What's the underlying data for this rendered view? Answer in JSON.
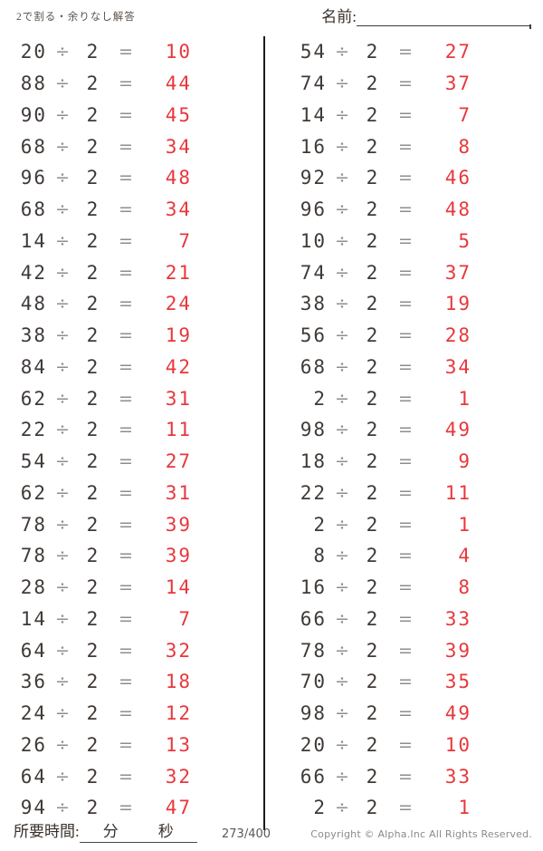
{
  "header": {
    "title": "2で割る・余りなし解答",
    "name_label": "名前:"
  },
  "symbols": {
    "divide": "÷",
    "equals": "="
  },
  "problems": {
    "left": [
      {
        "dividend": "20",
        "divisor": "2",
        "answer": "10"
      },
      {
        "dividend": "88",
        "divisor": "2",
        "answer": "44"
      },
      {
        "dividend": "90",
        "divisor": "2",
        "answer": "45"
      },
      {
        "dividend": "68",
        "divisor": "2",
        "answer": "34"
      },
      {
        "dividend": "96",
        "divisor": "2",
        "answer": "48"
      },
      {
        "dividend": "68",
        "divisor": "2",
        "answer": "34"
      },
      {
        "dividend": "14",
        "divisor": "2",
        "answer": "7"
      },
      {
        "dividend": "42",
        "divisor": "2",
        "answer": "21"
      },
      {
        "dividend": "48",
        "divisor": "2",
        "answer": "24"
      },
      {
        "dividend": "38",
        "divisor": "2",
        "answer": "19"
      },
      {
        "dividend": "84",
        "divisor": "2",
        "answer": "42"
      },
      {
        "dividend": "62",
        "divisor": "2",
        "answer": "31"
      },
      {
        "dividend": "22",
        "divisor": "2",
        "answer": "11"
      },
      {
        "dividend": "54",
        "divisor": "2",
        "answer": "27"
      },
      {
        "dividend": "62",
        "divisor": "2",
        "answer": "31"
      },
      {
        "dividend": "78",
        "divisor": "2",
        "answer": "39"
      },
      {
        "dividend": "78",
        "divisor": "2",
        "answer": "39"
      },
      {
        "dividend": "28",
        "divisor": "2",
        "answer": "14"
      },
      {
        "dividend": "14",
        "divisor": "2",
        "answer": "7"
      },
      {
        "dividend": "64",
        "divisor": "2",
        "answer": "32"
      },
      {
        "dividend": "36",
        "divisor": "2",
        "answer": "18"
      },
      {
        "dividend": "24",
        "divisor": "2",
        "answer": "12"
      },
      {
        "dividend": "26",
        "divisor": "2",
        "answer": "13"
      },
      {
        "dividend": "64",
        "divisor": "2",
        "answer": "32"
      },
      {
        "dividend": "94",
        "divisor": "2",
        "answer": "47"
      }
    ],
    "right": [
      {
        "dividend": "54",
        "divisor": "2",
        "answer": "27"
      },
      {
        "dividend": "74",
        "divisor": "2",
        "answer": "37"
      },
      {
        "dividend": "14",
        "divisor": "2",
        "answer": "7"
      },
      {
        "dividend": "16",
        "divisor": "2",
        "answer": "8"
      },
      {
        "dividend": "92",
        "divisor": "2",
        "answer": "46"
      },
      {
        "dividend": "96",
        "divisor": "2",
        "answer": "48"
      },
      {
        "dividend": "10",
        "divisor": "2",
        "answer": "5"
      },
      {
        "dividend": "74",
        "divisor": "2",
        "answer": "37"
      },
      {
        "dividend": "38",
        "divisor": "2",
        "answer": "19"
      },
      {
        "dividend": "56",
        "divisor": "2",
        "answer": "28"
      },
      {
        "dividend": "68",
        "divisor": "2",
        "answer": "34"
      },
      {
        "dividend": "2",
        "divisor": "2",
        "answer": "1"
      },
      {
        "dividend": "98",
        "divisor": "2",
        "answer": "49"
      },
      {
        "dividend": "18",
        "divisor": "2",
        "answer": "9"
      },
      {
        "dividend": "22",
        "divisor": "2",
        "answer": "11"
      },
      {
        "dividend": "2",
        "divisor": "2",
        "answer": "1"
      },
      {
        "dividend": "8",
        "divisor": "2",
        "answer": "4"
      },
      {
        "dividend": "16",
        "divisor": "2",
        "answer": "8"
      },
      {
        "dividend": "66",
        "divisor": "2",
        "answer": "33"
      },
      {
        "dividend": "78",
        "divisor": "2",
        "answer": "39"
      },
      {
        "dividend": "70",
        "divisor": "2",
        "answer": "35"
      },
      {
        "dividend": "98",
        "divisor": "2",
        "answer": "49"
      },
      {
        "dividend": "20",
        "divisor": "2",
        "answer": "10"
      },
      {
        "dividend": "66",
        "divisor": "2",
        "answer": "33"
      },
      {
        "dividend": "2",
        "divisor": "2",
        "answer": "1"
      }
    ]
  },
  "footer": {
    "time_label": "所要時間:",
    "minutes_label": "分",
    "seconds_label": "秒",
    "page_number": "273/400",
    "copyright": "Copyright ©  Alpha.Inc All Rights Reserved."
  },
  "colors": {
    "problem_text": "#403a37",
    "operator_gray": "#8d8d8d",
    "answer_red": "#e8373c",
    "divider": "#1c1c1c"
  }
}
